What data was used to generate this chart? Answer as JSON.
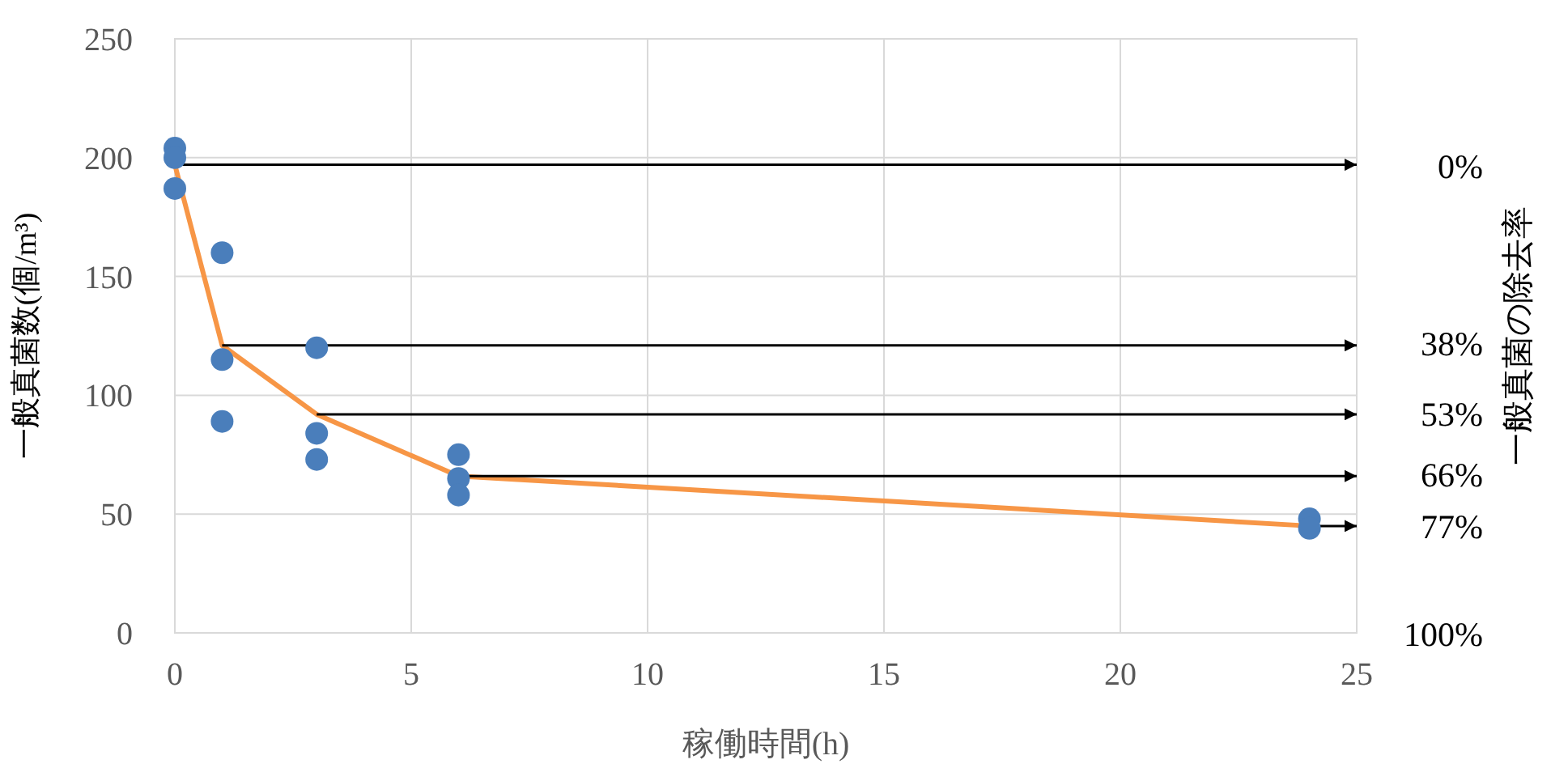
{
  "chart_data": {
    "type": "scatter",
    "xlabel": "稼働時間(h)",
    "ylabel": "一般真菌数(個/m³)",
    "y2label": "一般真菌の除去率",
    "xlim": [
      0,
      25
    ],
    "xticks": [
      0,
      5,
      10,
      15,
      20,
      25
    ],
    "ylim": [
      0,
      250
    ],
    "yticks": [
      0,
      50,
      100,
      150,
      200,
      250
    ],
    "y2lim": [
      100,
      -26.9
    ],
    "y2ticks": [
      {
        "value": 0,
        "label": "0%"
      },
      {
        "value": 38,
        "label": "38%"
      },
      {
        "value": 53,
        "label": "53%"
      },
      {
        "value": 66,
        "label": "66%"
      },
      {
        "value": 77,
        "label": "77%"
      },
      {
        "value": 100,
        "label": "100%"
      }
    ],
    "grid": true,
    "series": [
      {
        "color": "#4a7ebb",
        "marker": "circle",
        "x": [
          0,
          0,
          0,
          1,
          1,
          1,
          3,
          3,
          3,
          6,
          6,
          6,
          24,
          24
        ],
        "values": [
          204,
          200,
          187,
          160,
          115,
          89,
          120,
          84,
          73,
          75,
          65,
          58,
          48,
          44
        ]
      },
      {
        "type": "line",
        "color": "#f79646",
        "marker": "none",
        "x": [
          0,
          1,
          3,
          6,
          24
        ],
        "values": [
          197,
          121,
          92,
          66,
          45
        ]
      }
    ]
  }
}
